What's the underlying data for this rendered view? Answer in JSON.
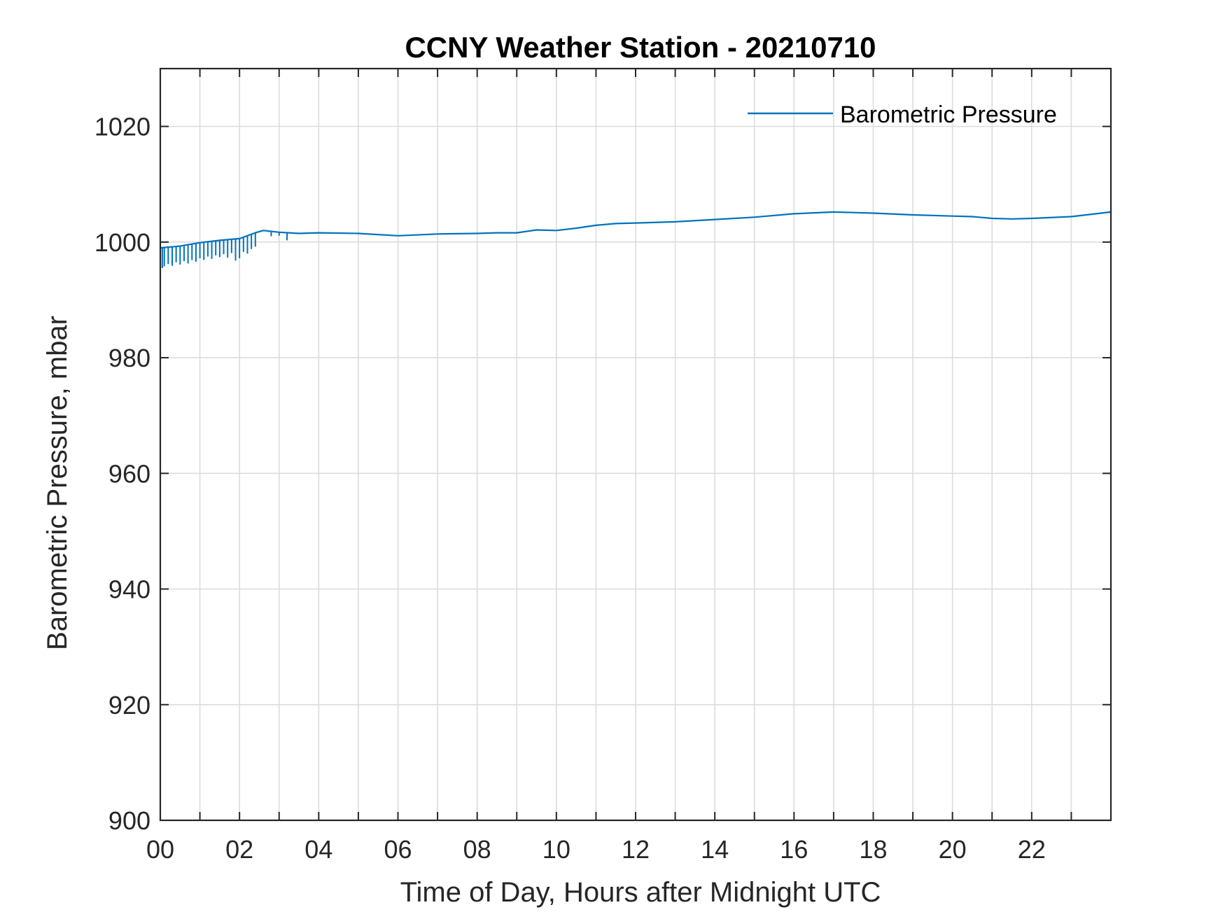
{
  "chart_data": {
    "type": "line",
    "title": "CCNY Weather Station - 20210710",
    "xlabel": "Time of Day, Hours after Midnight UTC",
    "ylabel": "Barometric Pressure, mbar",
    "xlim": [
      0,
      24
    ],
    "ylim": [
      900,
      1030
    ],
    "x_ticks": [
      0,
      2,
      4,
      6,
      8,
      10,
      12,
      14,
      16,
      18,
      20,
      22
    ],
    "x_tick_labels": [
      "00",
      "02",
      "04",
      "06",
      "08",
      "10",
      "12",
      "14",
      "16",
      "18",
      "20",
      "22"
    ],
    "x_grid_step_hours": 1,
    "y_ticks": [
      900,
      920,
      940,
      960,
      980,
      1000,
      1020
    ],
    "y_tick_labels": [
      "900",
      "920",
      "940",
      "960",
      "980",
      "1000",
      "1020"
    ],
    "y_grid_step": 20,
    "grid": true,
    "legend": {
      "entries": [
        "Barometric Pressure"
      ],
      "position": "top-right",
      "box": false
    },
    "series": [
      {
        "name": "Barometric Pressure",
        "color": "#0072BD",
        "x": [
          0.0,
          0.5,
          1.0,
          1.5,
          2.0,
          2.4,
          2.6,
          3.0,
          3.5,
          4.0,
          5.0,
          6.0,
          7.0,
          8.0,
          8.5,
          9.0,
          9.5,
          10.0,
          10.5,
          11.0,
          11.5,
          12.0,
          13.0,
          14.0,
          15.0,
          16.0,
          17.0,
          17.5,
          18.0,
          19.0,
          20.0,
          20.5,
          21.0,
          21.5,
          22.0,
          23.0,
          24.0
        ],
        "values": [
          999.0,
          999.3,
          999.9,
          1000.3,
          1000.6,
          1001.6,
          1002.0,
          1001.7,
          1001.5,
          1001.6,
          1001.5,
          1001.1,
          1001.4,
          1001.5,
          1001.6,
          1001.6,
          1002.1,
          1002.0,
          1002.4,
          1002.9,
          1003.2,
          1003.3,
          1003.5,
          1003.9,
          1004.3,
          1004.9,
          1005.2,
          1005.1,
          1005.0,
          1004.7,
          1004.5,
          1004.4,
          1004.1,
          1004.0,
          1004.1,
          1004.4,
          1005.2
        ]
      }
    ],
    "noisy_dropouts": {
      "x": [
        0.05,
        0.1,
        0.2,
        0.3,
        0.4,
        0.5,
        0.6,
        0.7,
        0.8,
        0.9,
        1.0,
        1.1,
        1.2,
        1.3,
        1.4,
        1.5,
        1.6,
        1.7,
        1.8,
        1.9,
        2.0,
        2.1,
        2.2,
        2.3,
        2.4,
        2.8,
        3.0,
        3.2
      ],
      "low": [
        995.5,
        995.8,
        996.2,
        995.9,
        996.5,
        996.1,
        996.7,
        996.3,
        996.9,
        996.6,
        997.2,
        996.9,
        997.5,
        997.1,
        997.7,
        997.4,
        997.9,
        997.3,
        998.1,
        996.8,
        997.2,
        998.3,
        998.0,
        998.8,
        999.2,
        1001.0,
        1001.1,
        1000.3
      ]
    }
  }
}
